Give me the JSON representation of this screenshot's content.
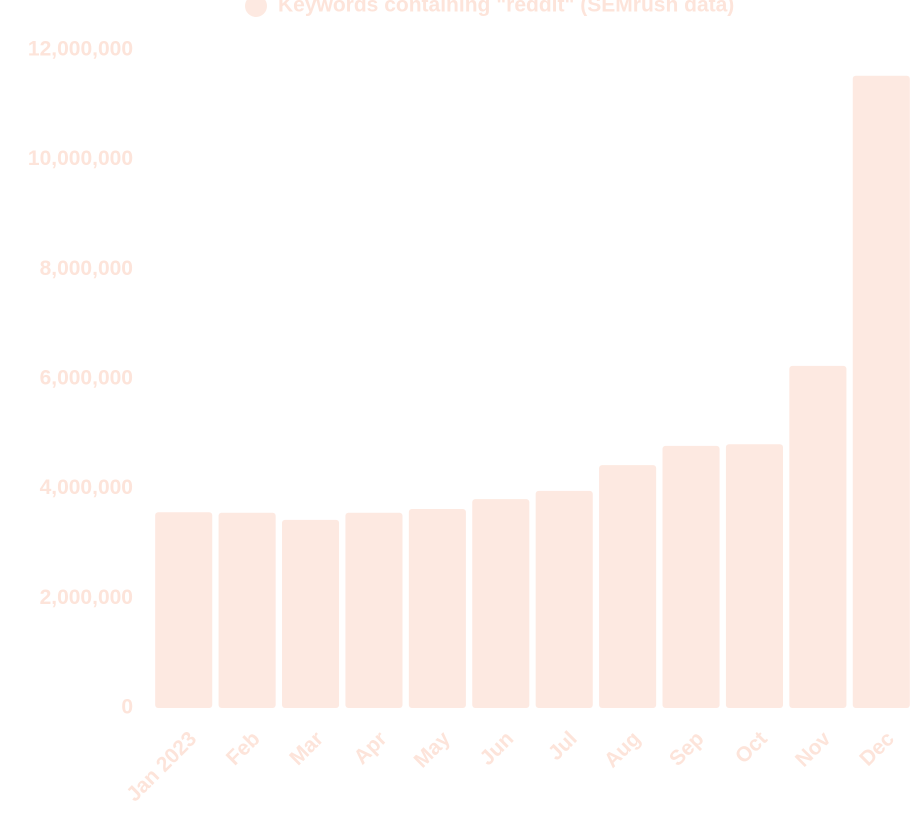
{
  "chart_data": {
    "type": "bar",
    "series": [
      {
        "name": "Keywords containing \"reddit\" (SEMrush data)",
        "color": "#fde9e1",
        "values": [
          3570000,
          3560000,
          3430000,
          3560000,
          3630000,
          3810000,
          3960000,
          4430000,
          4780000,
          4810000,
          6240000,
          11530000
        ]
      }
    ],
    "categories": [
      "Jan 2023",
      "Feb",
      "Mar",
      "Apr",
      "May",
      "Jun",
      "Jul",
      "Aug",
      "Sep",
      "Oct",
      "Nov",
      "Dec"
    ],
    "ylim": [
      0,
      12000000
    ],
    "yticks": [
      0,
      {
        "value": 2000000,
        "label": "2,000,000"
      },
      {
        "value": 4000000,
        "label": "4,000,000"
      },
      {
        "value": 6000000,
        "label": "6,000,000"
      },
      {
        "value": 8000000,
        "label": "8,000,000"
      },
      {
        "value": 10000000,
        "label": "10,000,000"
      },
      {
        "value": 12000000,
        "label": "12,000,000"
      }
    ],
    "grid": false
  }
}
